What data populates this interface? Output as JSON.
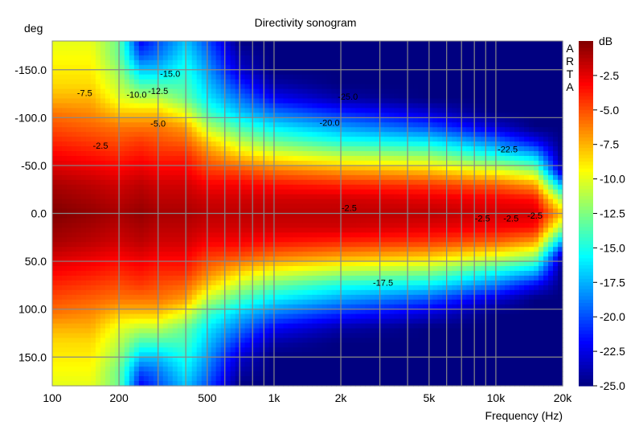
{
  "chart_data": {
    "type": "heatmap",
    "title": "Directivity sonogram",
    "xlabel": "Frequency (Hz)",
    "ylabel": "deg",
    "xscale": "log",
    "xlim": [
      100,
      20000
    ],
    "ylim": [
      -180,
      180
    ],
    "x_ticks": [
      "100",
      "200",
      "500",
      "1k",
      "2k",
      "5k",
      "10k",
      "20k"
    ],
    "x_tick_values": [
      100,
      200,
      500,
      1000,
      2000,
      5000,
      10000,
      20000
    ],
    "y_ticks": [
      "-150.0",
      "-100.0",
      "-50.0",
      "0.0",
      "50.0",
      "100.0",
      "150.0"
    ],
    "y_tick_values": [
      -150,
      -100,
      -50,
      0,
      50,
      100,
      150
    ],
    "colorbar": {
      "label": "dB",
      "range": [
        -25,
        0
      ],
      "ticks": [
        "-2.5",
        "-5.0",
        "-7.5",
        "-10.0",
        "-12.5",
        "-15.0",
        "-17.5",
        "-20.0",
        "-22.5",
        "-25.0"
      ],
      "tick_values": [
        -2.5,
        -5,
        -7.5,
        -10,
        -12.5,
        -15,
        -17.5,
        -20,
        -22.5,
        -25
      ],
      "colormap": "jet"
    },
    "watermark": "ARTA",
    "grid": true,
    "freqs": [
      100,
      150,
      200,
      250,
      300,
      400,
      500,
      700,
      1000,
      2000,
      5000,
      10000,
      15000,
      20000
    ],
    "angles_abs": [
      0,
      15,
      30,
      45,
      60,
      75,
      90,
      105,
      120,
      135,
      150,
      165,
      180
    ],
    "values_db": [
      [
        0,
        -0.5,
        -1,
        -2,
        -3,
        -4,
        -5,
        -6,
        -7.5,
        -8.5,
        -9,
        -9.5,
        -10
      ],
      [
        -0.5,
        -1,
        -1.5,
        -2.5,
        -3.5,
        -4.5,
        -5.5,
        -6.5,
        -7.5,
        -8.5,
        -9,
        -9.5,
        -10
      ],
      [
        -1,
        -1.5,
        -2,
        -3,
        -4,
        -5,
        -6,
        -8,
        -10,
        -11,
        -12,
        -13,
        -13
      ],
      [
        -0.5,
        -1,
        -1.5,
        -2.5,
        -3.5,
        -4.5,
        -6,
        -8,
        -11,
        -14,
        -17,
        -20,
        -22
      ],
      [
        -1,
        -1.5,
        -2,
        -3,
        -4,
        -5,
        -6,
        -8,
        -11,
        -14,
        -17,
        -19,
        -20
      ],
      [
        -1,
        -1.5,
        -2,
        -3,
        -4,
        -5.5,
        -7,
        -10,
        -13,
        -14,
        -15,
        -16,
        -17
      ],
      [
        -1.5,
        -2,
        -3,
        -4.5,
        -6,
        -8,
        -11,
        -14,
        -16,
        -17,
        -18,
        -19,
        -20
      ],
      [
        -1.5,
        -2,
        -3,
        -5,
        -8,
        -11,
        -14,
        -17,
        -19,
        -21,
        -23,
        -24,
        -25
      ],
      [
        -1.5,
        -2,
        -3.5,
        -6,
        -9.5,
        -13,
        -16,
        -19,
        -22,
        -24,
        -25,
        -25,
        -25
      ],
      [
        -1.5,
        -2,
        -4,
        -7,
        -11,
        -15,
        -18,
        -21,
        -24,
        -25,
        -25,
        -25,
        -25
      ],
      [
        -1.5,
        -2.5,
        -4.5,
        -8,
        -12,
        -16,
        -20,
        -23,
        -25,
        -25,
        -25,
        -25,
        -25
      ],
      [
        -2,
        -3,
        -5.5,
        -10,
        -15,
        -19,
        -23,
        -25,
        -25,
        -25,
        -25,
        -25,
        -25
      ],
      [
        -2,
        -3.5,
        -7,
        -12,
        -17,
        -22,
        -25,
        -25,
        -25,
        -25,
        -25,
        -25,
        -25
      ],
      [
        -8,
        -12,
        -18,
        -24,
        -25,
        -25,
        -25,
        -25,
        -25,
        -25,
        -25,
        -25,
        -25
      ]
    ],
    "annotations": [
      {
        "text": "-7.5",
        "freq": 140,
        "angle": -126
      },
      {
        "text": "-10.0",
        "freq": 240,
        "angle": -124
      },
      {
        "text": "-12.5",
        "freq": 300,
        "angle": -128
      },
      {
        "text": "-15.0",
        "freq": 340,
        "angle": -146
      },
      {
        "text": "-5.0",
        "freq": 300,
        "angle": -94
      },
      {
        "text": "-2.5",
        "freq": 165,
        "angle": -71
      },
      {
        "text": "-20.0",
        "freq": 1780,
        "angle": -95
      },
      {
        "text": "-25.0",
        "freq": 2150,
        "angle": -122
      },
      {
        "text": "-22.5",
        "freq": 11300,
        "angle": -67
      },
      {
        "text": "-2.5",
        "freq": 2180,
        "angle": -6
      },
      {
        "text": "-2.5",
        "freq": 8700,
        "angle": 5
      },
      {
        "text": "-2.5",
        "freq": 11700,
        "angle": 5
      },
      {
        "text": "-2.5",
        "freq": 15000,
        "angle": 2
      },
      {
        "text": "-17.5",
        "freq": 3100,
        "angle": 72
      }
    ]
  }
}
